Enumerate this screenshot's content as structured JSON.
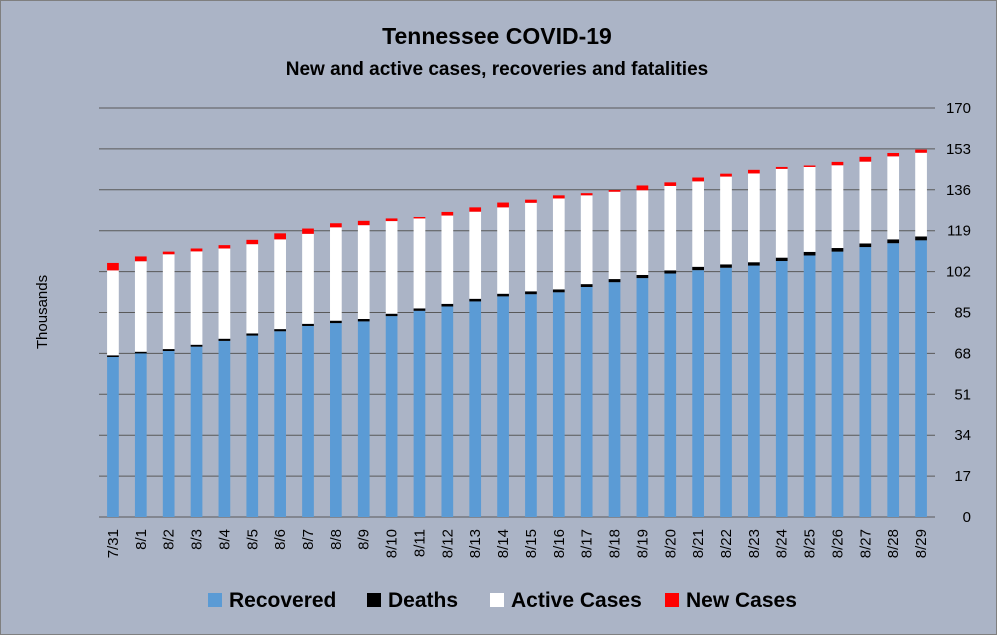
{
  "chart_data": {
    "type": "bar",
    "stacked": true,
    "title": "Tennessee COVID-19",
    "subtitle": "New and active cases, recoveries and fatalities",
    "ylabel": "Thousands",
    "xlabel": "",
    "ylim": [
      0,
      170
    ],
    "yticks": [
      0,
      17,
      34,
      51,
      68,
      85,
      102,
      119,
      136,
      153,
      170
    ],
    "y_axis_position": "right",
    "grid": true,
    "legend_position": "bottom",
    "categories": [
      "7/31",
      "8/1",
      "8/2",
      "8/3",
      "8/4",
      "8/5",
      "8/6",
      "8/7",
      "8/8",
      "8/9",
      "8/10",
      "8/11",
      "8/12",
      "8/13",
      "8/14",
      "8/15",
      "8/16",
      "8/17",
      "8/18",
      "8/19",
      "8/20",
      "8/21",
      "8/22",
      "8/23",
      "8/24",
      "8/25",
      "8/26",
      "8/27",
      "8/28",
      "8/29"
    ],
    "series": [
      {
        "name": "Recovered",
        "color": "#5b9bd5",
        "values": [
          66.5,
          68.0,
          69.0,
          70.8,
          73.2,
          75.4,
          77.2,
          79.4,
          80.6,
          81.3,
          83.5,
          85.7,
          87.5,
          89.6,
          91.7,
          92.6,
          93.4,
          95.6,
          97.6,
          99.3,
          101.2,
          102.6,
          103.6,
          104.5,
          106.4,
          108.7,
          110.3,
          112.2,
          113.8,
          115.0
        ]
      },
      {
        "name": "Deaths",
        "color": "#000000",
        "values": [
          0.7,
          0.7,
          0.8,
          0.8,
          0.9,
          0.9,
          0.9,
          0.9,
          1.0,
          1.0,
          1.0,
          1.0,
          1.1,
          1.1,
          1.1,
          1.2,
          1.2,
          1.2,
          1.3,
          1.3,
          1.3,
          1.4,
          1.4,
          1.4,
          1.4,
          1.5,
          1.5,
          1.5,
          1.6,
          1.6
        ]
      },
      {
        "name": "Active Cases",
        "color": "#ffffff",
        "values": [
          35.3,
          37.6,
          39.4,
          38.8,
          37.5,
          37.1,
          37.3,
          37.4,
          38.8,
          39.0,
          38.5,
          37.4,
          36.7,
          36.2,
          35.9,
          36.8,
          37.8,
          36.9,
          36.3,
          35.2,
          35.1,
          35.5,
          36.5,
          36.9,
          36.9,
          35.3,
          34.4,
          34.0,
          34.5,
          34.8
        ]
      },
      {
        "name": "New Cases",
        "color": "#ff0000",
        "values": [
          3.1,
          2.0,
          1.1,
          1.2,
          1.4,
          1.8,
          2.5,
          2.2,
          1.7,
          1.8,
          1.1,
          0.6,
          1.5,
          1.8,
          2.0,
          1.3,
          1.3,
          0.9,
          0.7,
          2.0,
          1.5,
          1.6,
          1.2,
          1.5,
          0.8,
          0.6,
          1.4,
          2.0,
          1.4,
          1.3
        ]
      }
    ]
  }
}
